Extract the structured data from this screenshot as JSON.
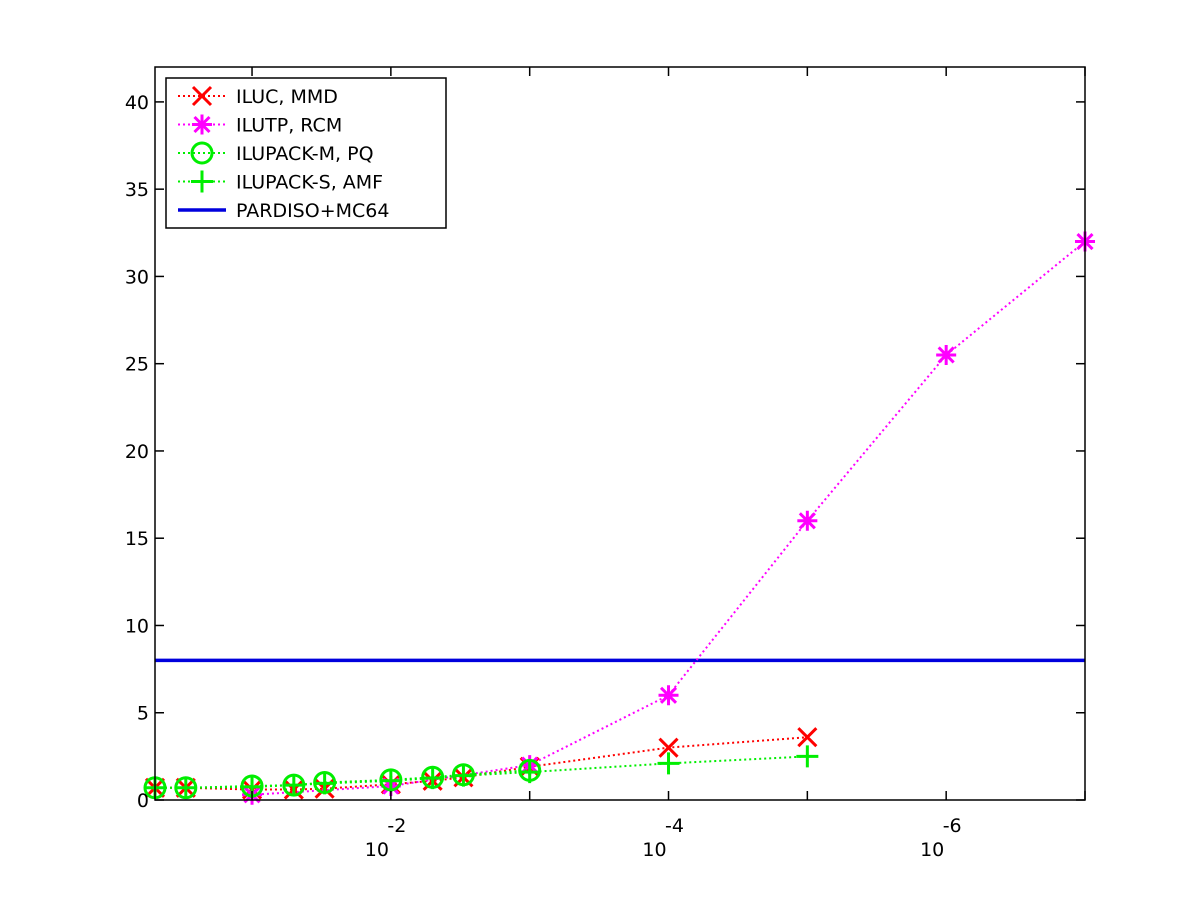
{
  "chart_data": {
    "type": "line",
    "title": "",
    "xlabel": "",
    "ylabel": "",
    "x_scale": "log, reversed (threshold decreasing to the right)",
    "xlim": [
      0.5,
      1e-07
    ],
    "ylim": [
      0,
      42
    ],
    "grid": false,
    "legend_position": "top-left",
    "y_ticks": [
      "0",
      "5",
      "10",
      "15",
      "20",
      "25",
      "30",
      "35",
      "40"
    ],
    "x_ticks": [
      {
        "base": "10",
        "exp": "-2"
      },
      {
        "base": "10",
        "exp": "-4"
      },
      {
        "base": "10",
        "exp": "-6"
      }
    ],
    "series": [
      {
        "name": "ILUC, MMD",
        "color": "#ff0000",
        "marker": "x",
        "line_style": "dotted",
        "x": [
          0.5,
          0.3,
          0.1,
          0.05,
          0.03,
          0.01,
          0.005,
          0.003,
          0.001,
          0.0001,
          1e-05
        ],
        "y": [
          0.7,
          0.7,
          0.6,
          0.6,
          0.65,
          0.9,
          1.1,
          1.3,
          1.9,
          3.0,
          3.6
        ]
      },
      {
        "name": "ILUTP, RCM",
        "color": "#ff00ff",
        "marker": "asterisk",
        "line_style": "dotted",
        "x": [
          0.1,
          0.01,
          0.001,
          0.0001,
          1e-05,
          1e-06,
          1e-07
        ],
        "y": [
          0.3,
          0.8,
          2.0,
          6.0,
          16.0,
          25.5,
          32.0
        ]
      },
      {
        "name": "ILUPACK-M, PQ",
        "color": "#00ee00",
        "marker": "circle",
        "line_style": "dotted",
        "x": [
          0.5,
          0.3,
          0.1,
          0.05,
          0.03,
          0.01,
          0.005,
          0.003,
          0.001
        ],
        "y": [
          0.7,
          0.7,
          0.8,
          0.85,
          1.0,
          1.15,
          1.3,
          1.45,
          1.7
        ]
      },
      {
        "name": "ILUPACK-S, AMF",
        "color": "#00ee00",
        "marker": "plus",
        "line_style": "dotted",
        "x": [
          0.5,
          0.3,
          0.1,
          0.05,
          0.03,
          0.01,
          0.005,
          0.003,
          0.001,
          0.0001,
          1e-05
        ],
        "y": [
          0.7,
          0.7,
          0.75,
          0.85,
          0.95,
          1.1,
          1.25,
          1.4,
          1.6,
          2.1,
          2.5
        ]
      },
      {
        "name": "PARDISO+MC64",
        "color": "#0000dd",
        "marker": "none",
        "line_style": "solid",
        "x": [
          0.5,
          1e-07
        ],
        "y": [
          8.0,
          8.0
        ]
      }
    ]
  }
}
